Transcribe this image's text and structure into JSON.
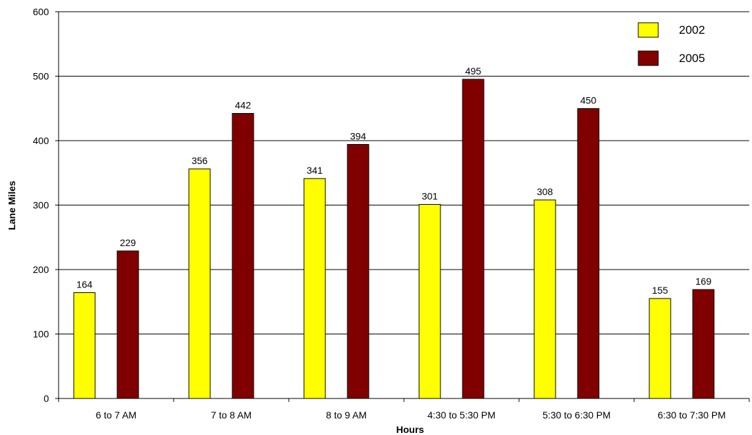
{
  "chart_data": {
    "type": "bar",
    "title": "",
    "xlabel": "Hours",
    "ylabel": "Lane Miles",
    "ylim": [
      0,
      600
    ],
    "yticks": [
      0,
      100,
      200,
      300,
      400,
      500,
      600
    ],
    "grid": true,
    "legend": "top-right",
    "categories": [
      "6 to 7 AM",
      "7 to 8 AM",
      "8 to 9 AM",
      "4:30 to 5:30 PM",
      "5:30 to 6:30 PM",
      "6:30 to 7:30 PM"
    ],
    "series": [
      {
        "name": "2002",
        "color": "#ffff00",
        "values": [
          164,
          356,
          341,
          301,
          308,
          155
        ]
      },
      {
        "name": "2005",
        "color": "#800000",
        "values": [
          229,
          442,
          394,
          495,
          450,
          169
        ]
      }
    ]
  }
}
